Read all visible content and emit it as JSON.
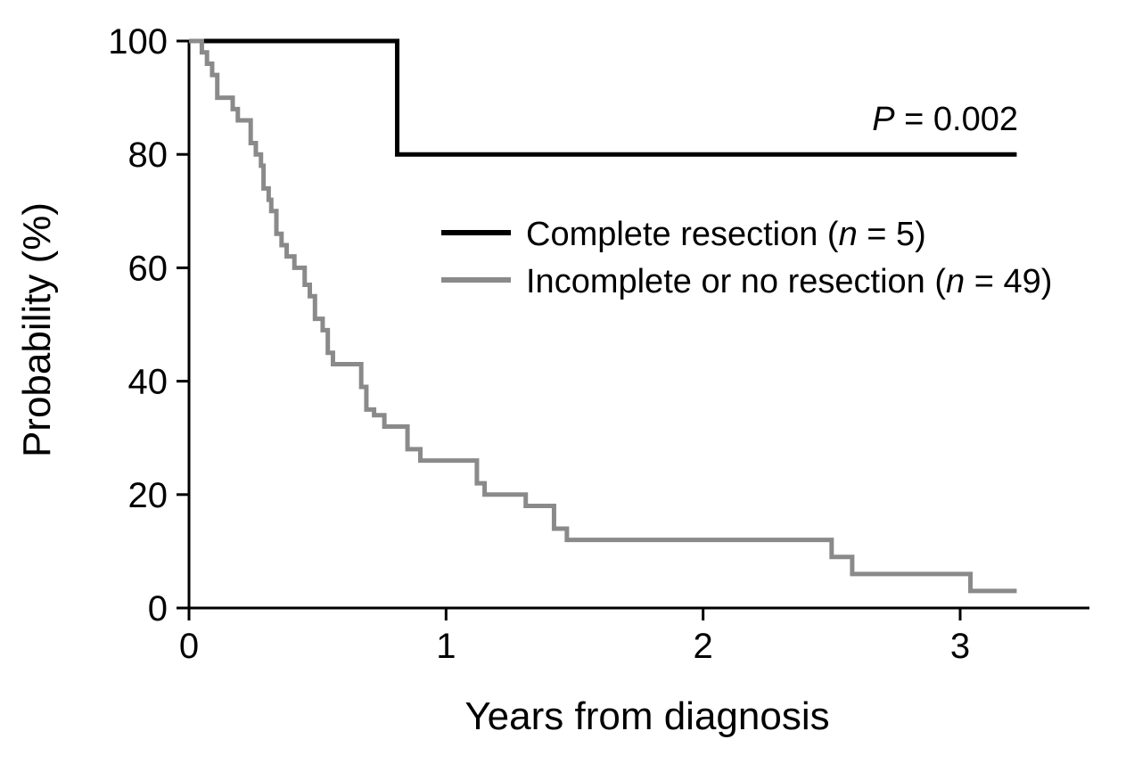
{
  "chart_data": {
    "type": "line",
    "subtype": "kaplan-meier step plot",
    "title": "",
    "xlabel": "Years from diagnosis",
    "ylabel": "Probability (%)",
    "xlim": [
      0,
      3.5
    ],
    "ylim": [
      0,
      100
    ],
    "x_ticks": [
      0,
      1,
      2,
      3
    ],
    "x_tick_labels": [
      "0",
      "1",
      "2",
      "3"
    ],
    "y_ticks": [
      0,
      20,
      40,
      60,
      80,
      100
    ],
    "y_tick_labels": [
      "0",
      "20",
      "40",
      "60",
      "80",
      "100"
    ],
    "grid": false,
    "legend_position": "upper-right",
    "annotation": {
      "italic": "P",
      "rest": " = 0.002"
    },
    "series": [
      {
        "name": "Complete resection (n = 5)",
        "legend_prefix": "Complete resection (",
        "legend_italic": "n",
        "legend_suffix": " = 5)",
        "color": "#000000",
        "x": [
          0,
          0.81,
          3.22
        ],
        "y": [
          100,
          80,
          80
        ]
      },
      {
        "name": "Incomplete or no resection (n = 49)",
        "legend_prefix": "Incomplete or no resection (",
        "legend_italic": "n",
        "legend_suffix": " = 49)",
        "color": "#8a8a8a",
        "x": [
          0,
          0.05,
          0.07,
          0.09,
          0.11,
          0.17,
          0.19,
          0.24,
          0.26,
          0.28,
          0.29,
          0.31,
          0.32,
          0.34,
          0.36,
          0.38,
          0.41,
          0.45,
          0.47,
          0.49,
          0.52,
          0.54,
          0.56,
          0.6,
          0.67,
          0.69,
          0.72,
          0.76,
          0.85,
          0.9,
          0.94,
          1.12,
          1.15,
          1.31,
          1.42,
          1.47,
          2.5,
          2.58,
          3.04,
          3.22
        ],
        "y": [
          100,
          98,
          96,
          94,
          90,
          88,
          86,
          82,
          80,
          78,
          74,
          72,
          70,
          66,
          64,
          62,
          60,
          57,
          55,
          51,
          49,
          45,
          43,
          43,
          39,
          35,
          34,
          32,
          28,
          26,
          26,
          22,
          20,
          18,
          14,
          12,
          9,
          6,
          3,
          3
        ]
      }
    ]
  }
}
